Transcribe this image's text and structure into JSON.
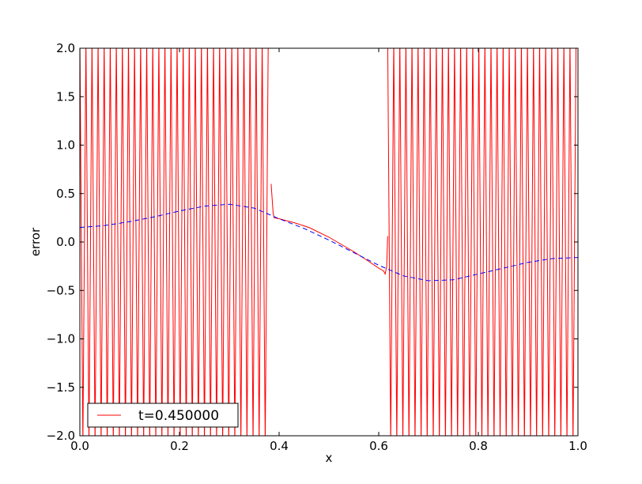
{
  "chart_data": {
    "type": "line",
    "title": "",
    "xlabel": "x",
    "ylabel": "error",
    "xlim": [
      0.0,
      1.0
    ],
    "ylim": [
      -2.0,
      2.0
    ],
    "xticks": [
      "0.0",
      "0.2",
      "0.4",
      "0.6",
      "0.8",
      "1.0"
    ],
    "yticks": [
      "−2.0",
      "−1.5",
      "−1.0",
      "−0.5",
      "0.0",
      "0.5",
      "1.0",
      "1.5",
      "2.0"
    ],
    "grid": false,
    "legend_position": "lower-left",
    "oscillation_step": 0.0061,
    "series": [
      {
        "name": "t=0.450000",
        "color": "#ff0000",
        "style": "solid",
        "oscillating_regions": [
          [
            0.0,
            0.384
          ],
          [
            0.618,
            1.0
          ]
        ],
        "oscillation_amplitude": 2.0,
        "x": [
          0.384,
          0.388,
          0.39,
          0.4,
          0.43,
          0.46,
          0.5,
          0.55,
          0.58,
          0.6,
          0.61,
          0.613,
          0.616,
          0.618
        ],
        "y": [
          0.6,
          0.3,
          0.25,
          0.24,
          0.2,
          0.15,
          0.05,
          -0.1,
          -0.2,
          -0.27,
          -0.3,
          -0.33,
          -0.25,
          0.06
        ]
      },
      {
        "name": "",
        "color": "#0000ff",
        "style": "dashed",
        "x": [
          0.0,
          0.05,
          0.1,
          0.15,
          0.2,
          0.25,
          0.3,
          0.35,
          0.4,
          0.45,
          0.5,
          0.55,
          0.6,
          0.65,
          0.7,
          0.75,
          0.8,
          0.85,
          0.9,
          0.95,
          1.0
        ],
        "y": [
          0.15,
          0.17,
          0.21,
          0.26,
          0.32,
          0.37,
          0.39,
          0.35,
          0.24,
          0.14,
          0.02,
          -0.11,
          -0.24,
          -0.35,
          -0.4,
          -0.39,
          -0.33,
          -0.27,
          -0.21,
          -0.17,
          -0.16
        ]
      }
    ]
  }
}
